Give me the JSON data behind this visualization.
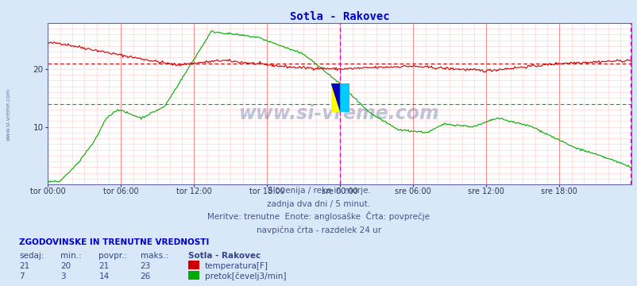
{
  "title": "Sotla - Rakovec",
  "title_color": "#0000cc",
  "bg_color": "#d8e8f8",
  "plot_bg_color": "#ffffff",
  "xlabel_ticks": [
    "tor 00:00",
    "tor 06:00",
    "tor 12:00",
    "tor 18:00",
    "sre 00:00",
    "sre 06:00",
    "sre 12:00",
    "sre 18:00"
  ],
  "n_points": 576,
  "temp_color": "#cc0000",
  "flow_color": "#00aa00",
  "flow_avg_val": 14,
  "temp_avg_val": 21,
  "y_min": 0,
  "y_max": 28,
  "y_ticks": [
    10,
    20
  ],
  "grid_color_minor": "#ffcccc",
  "grid_color_major": "#ff8888",
  "watermark": "www.si-vreme.com",
  "sub1": "Slovenija / reke in morje.",
  "sub2": "zadnja dva dni / 5 minut.",
  "sub3": "Meritve: trenutne  Enote: anglosaške  Črta: povprečje",
  "sub4": "navpična črta - razdelek 24 ur",
  "footer_title": "ZGODOVINSKE IN TRENUTNE VREDNOSTI",
  "col_headers": [
    "sedaj:",
    "min.:",
    "povpr.:",
    "maks.:"
  ],
  "row1": [
    "21",
    "20",
    "21",
    "23"
  ],
  "row2": [
    "7",
    "3",
    "14",
    "26"
  ],
  "legend_label1": "temperatura[F]",
  "legend_label2": "pretok[čevelj3/min]",
  "station_name": "Sotla - Rakovec"
}
